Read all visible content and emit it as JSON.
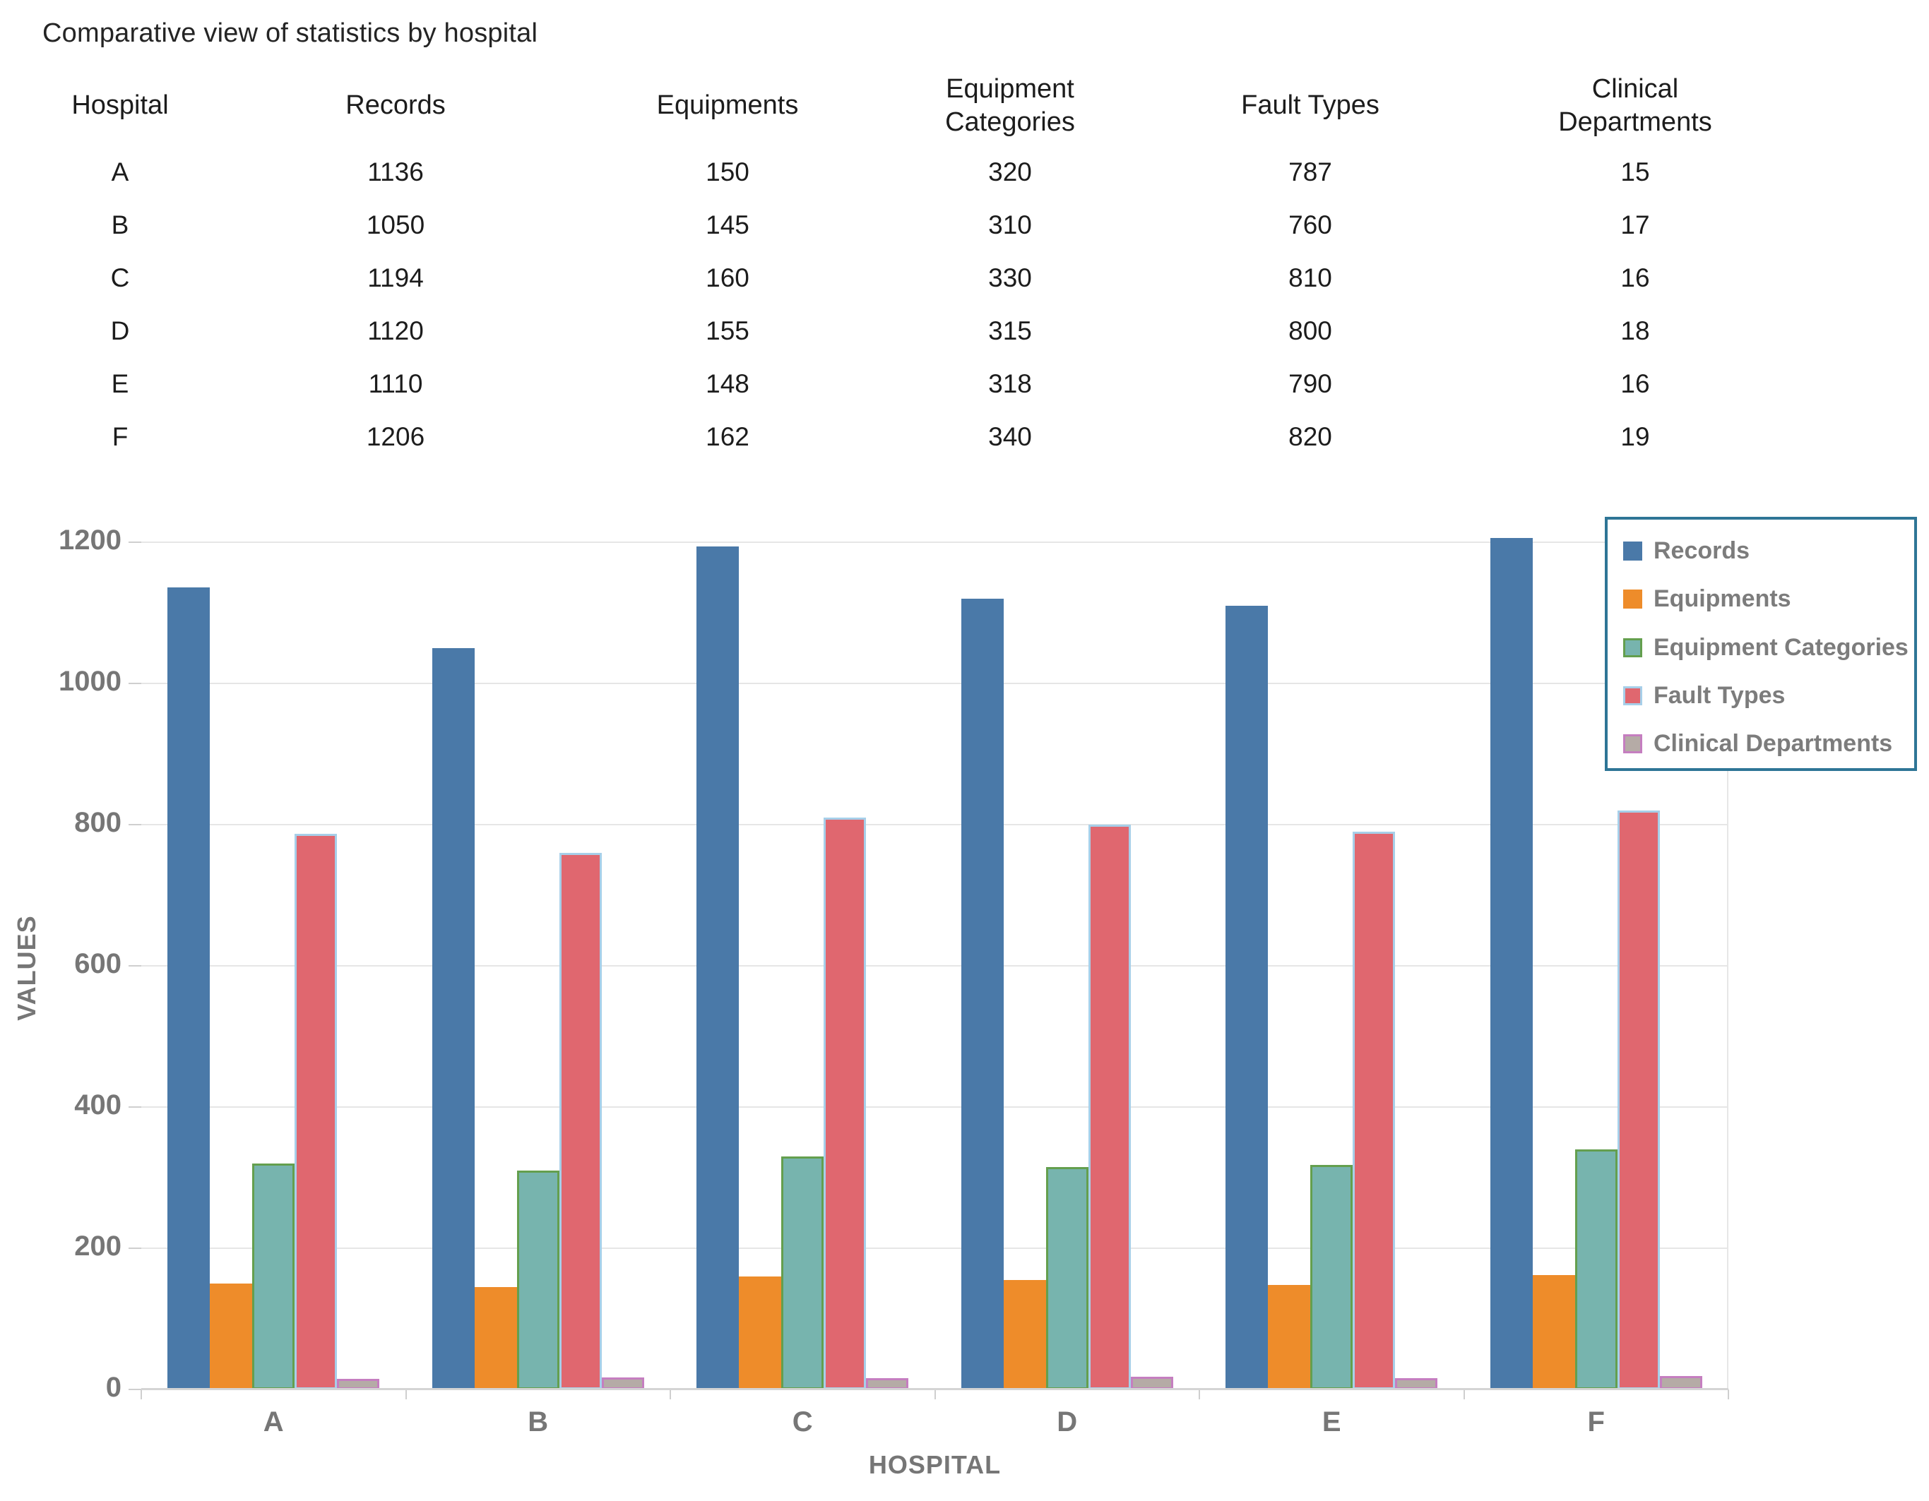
{
  "title": "Comparative view of statistics by hospital",
  "table": {
    "columns": [
      "Hospital",
      "Records",
      "Equipments",
      "Equipment Categories",
      "Fault Types",
      "Clinical Departments"
    ],
    "rows": [
      [
        "A",
        "1136",
        "150",
        "320",
        "787",
        "15"
      ],
      [
        "B",
        "1050",
        "145",
        "310",
        "760",
        "17"
      ],
      [
        "C",
        "1194",
        "160",
        "330",
        "810",
        "16"
      ],
      [
        "D",
        "1120",
        "155",
        "315",
        "800",
        "18"
      ],
      [
        "E",
        "1110",
        "148",
        "318",
        "790",
        "16"
      ],
      [
        "F",
        "1206",
        "162",
        "340",
        "820",
        "19"
      ]
    ]
  },
  "chart_data": {
    "type": "bar",
    "categories": [
      "A",
      "B",
      "C",
      "D",
      "E",
      "F"
    ],
    "series": [
      {
        "name": "Records",
        "color": "#4a79a8",
        "border_color": "#4a79a8",
        "border_width": 0,
        "values": [
          1136,
          1050,
          1194,
          1120,
          1110,
          1206
        ]
      },
      {
        "name": "Equipments",
        "color": "#ee8c2a",
        "border_color": "#ee8c2a",
        "border_width": 0,
        "values": [
          150,
          145,
          160,
          155,
          148,
          162
        ]
      },
      {
        "name": "Equipment Categories",
        "color": "#77b4ae",
        "border_color": "#649f4e",
        "border_width": 3,
        "values": [
          320,
          310,
          330,
          315,
          318,
          340
        ]
      },
      {
        "name": "Fault Types",
        "color": "#e0676f",
        "border_color": "#a7cfe9",
        "border_width": 3,
        "values": [
          787,
          760,
          810,
          800,
          790,
          820
        ]
      },
      {
        "name": "Clinical Departments",
        "color": "#b5aba6",
        "border_color": "#c57ec0",
        "border_width": 3,
        "values": [
          15,
          17,
          16,
          18,
          16,
          19
        ]
      }
    ],
    "xlabel": "HOSPITAL",
    "ylabel": "VALUES",
    "ylim": [
      0,
      1200
    ],
    "ytick_step": 200,
    "grid": true,
    "legend_position": "top-right",
    "colors": {
      "grid": "#e6e6e6",
      "axis_text": "#767676",
      "legend_border": "#2e7596",
      "legend_text": "#7c7c7c",
      "table_text": "#1c1c1c"
    }
  }
}
